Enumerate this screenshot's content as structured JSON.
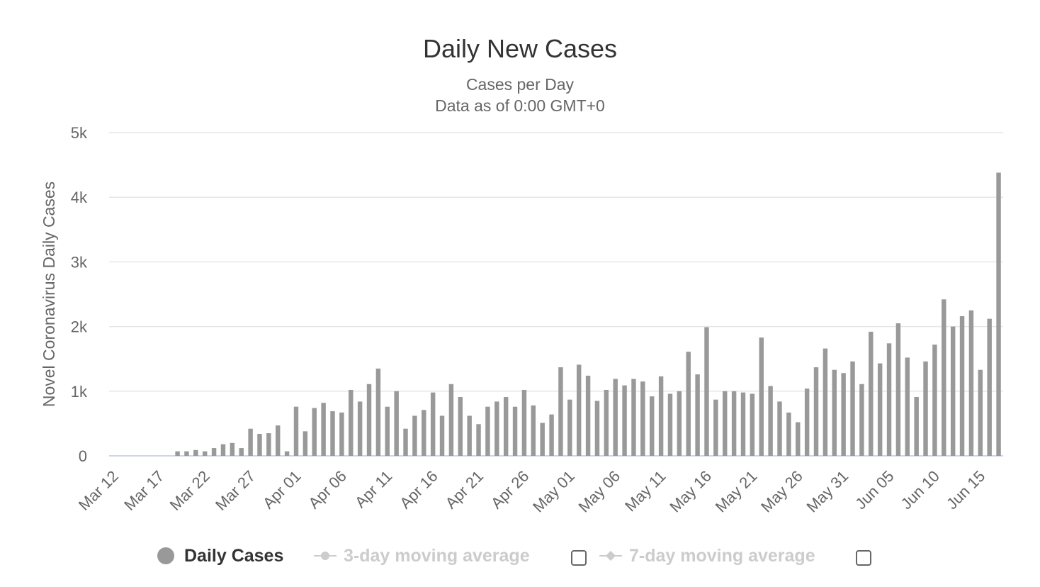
{
  "chart_data": {
    "type": "bar",
    "title": "Daily New Cases",
    "subtitle": [
      "Cases per Day",
      "Data as of 0:00 GMT+0"
    ],
    "xlabel": "",
    "ylabel": "Novel Coronavirus Daily Cases",
    "ylim": [
      0,
      5000
    ],
    "yticks": [
      0,
      1000,
      2000,
      3000,
      4000,
      5000
    ],
    "ytick_labels": [
      "0",
      "1k",
      "2k",
      "3k",
      "4k",
      "5k"
    ],
    "grid": true,
    "x_start": "Mar 12",
    "x_end": "Jun 16",
    "xtick_labels": [
      "Mar 12",
      "Mar 17",
      "Mar 22",
      "Mar 27",
      "Apr 01",
      "Apr 06",
      "Apr 11",
      "Apr 16",
      "Apr 21",
      "Apr 26",
      "May 01",
      "May 06",
      "May 11",
      "May 16",
      "May 21",
      "May 26",
      "May 31",
      "Jun 05",
      "Jun 10",
      "Jun 15"
    ],
    "bar_color": "#999999",
    "series": [
      {
        "name": "Daily Cases",
        "values": [
          0,
          0,
          0,
          0,
          0,
          0,
          0,
          70,
          70,
          90,
          70,
          120,
          180,
          200,
          120,
          420,
          340,
          350,
          470,
          70,
          760,
          380,
          740,
          820,
          690,
          670,
          1020,
          840,
          1110,
          1350,
          760,
          1000,
          420,
          620,
          710,
          980,
          620,
          1110,
          910,
          620,
          490,
          760,
          840,
          910,
          760,
          1020,
          780,
          510,
          640,
          1370,
          870,
          1410,
          1240,
          850,
          1020,
          1190,
          1090,
          1190,
          1150,
          920,
          1230,
          960,
          1000,
          1610,
          1260,
          1990,
          870,
          1000,
          1000,
          980,
          960,
          1830,
          1080,
          840,
          670,
          520,
          1040,
          1370,
          1660,
          1330,
          1280,
          1460,
          1110,
          1920,
          1430,
          1740,
          2050,
          1520,
          910,
          1460,
          1720,
          2420,
          2000,
          2160,
          2250,
          1330,
          2120,
          4380
        ]
      }
    ],
    "legend": {
      "placement": "bottom-center",
      "items": [
        {
          "label": "Daily Cases",
          "visible": true
        },
        {
          "label": "3-day moving average",
          "visible": false
        },
        {
          "label": "7-day moving average",
          "visible": false
        }
      ]
    }
  }
}
